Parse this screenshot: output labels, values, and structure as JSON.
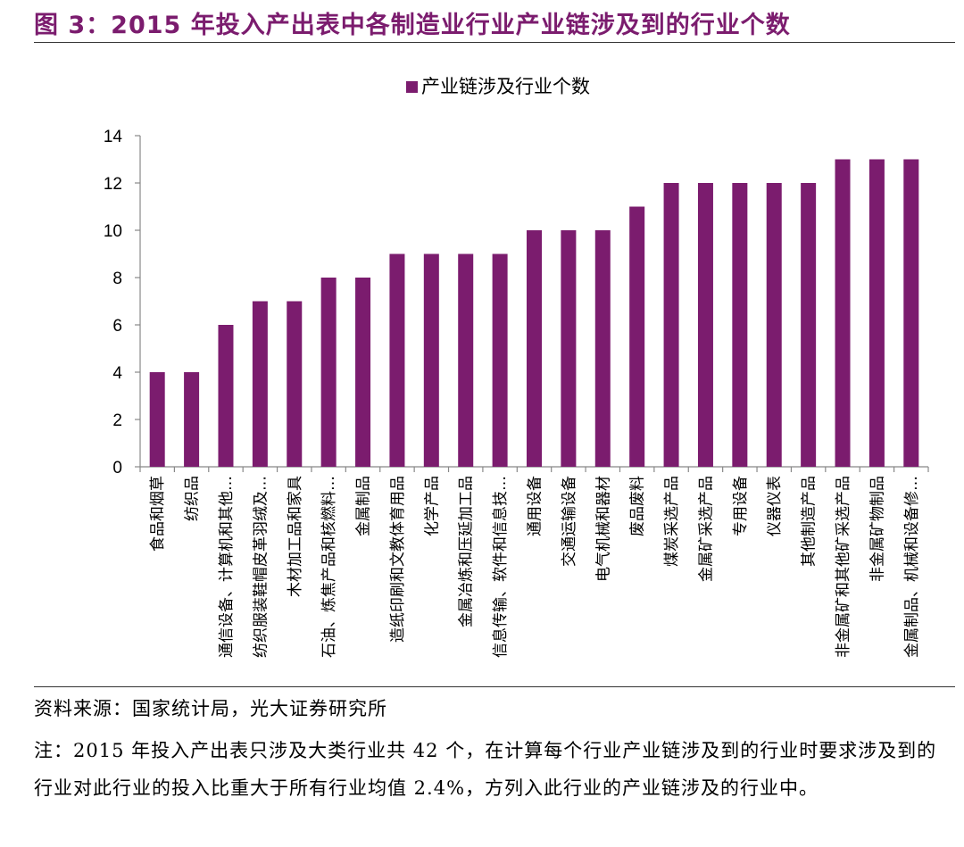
{
  "header": {
    "title": "图 3：2015 年投入产出表中各制造业行业产业链涉及到的行业个数"
  },
  "chart_data": {
    "type": "bar",
    "title": "",
    "legend": "产业链涉及行业个数",
    "legend_position": "top-center",
    "color": "#7b1c6e",
    "xlabel": "",
    "ylabel": "",
    "ylim": [
      0,
      14
    ],
    "yticks": [
      0,
      2,
      4,
      6,
      8,
      10,
      12,
      14
    ],
    "categories": [
      "食品和烟草",
      "纺织品",
      "通信设备、计算机和其他…",
      "纺织服装鞋帽皮革羽绒及…",
      "木材加工品和家具",
      "石油、炼焦产品和核燃料…",
      "金属制品",
      "造纸印刷和文教体育用品",
      "化学产品",
      "金属冶炼和压延加工品",
      "信息传输、软件和信息技…",
      "通用设备",
      "交通运输设备",
      "电气机械和器材",
      "废品废料",
      "煤炭采选产品",
      "金属矿采选产品",
      "专用设备",
      "仪器仪表",
      "其他制造产品",
      "非金属矿和其他矿采选产品",
      "非金属矿物制品",
      "金属制品、机械和设备修…"
    ],
    "series": [
      {
        "name": "产业链涉及行业个数",
        "values": [
          4,
          4,
          6,
          7,
          7,
          8,
          8,
          9,
          9,
          9,
          9,
          10,
          10,
          10,
          11,
          12,
          12,
          12,
          12,
          12,
          13,
          13,
          13
        ]
      }
    ]
  },
  "footer": {
    "source": "资料来源：国家统计局，光大证券研究所",
    "note": "注：2015 年投入产出表只涉及大类行业共 42 个，在计算每个行业产业链涉及到的行业时要求涉及到的行业对此行业的投入比重大于所有行业均值 2.4%，方列入此行业的产业链涉及的行业中。"
  }
}
